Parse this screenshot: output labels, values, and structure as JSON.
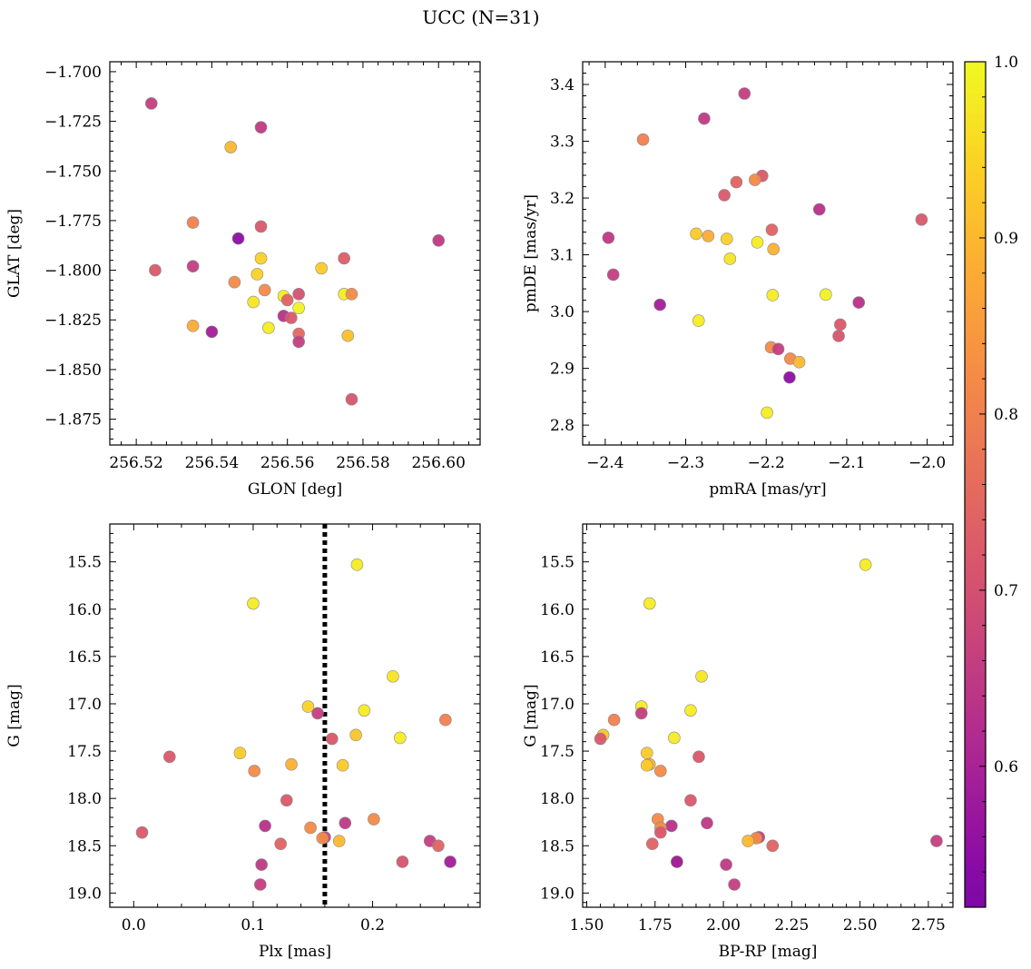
{
  "suptitle": "UCC (N=31)",
  "colormap": "plasma",
  "colorbar": {
    "range": [
      0.52,
      1.0
    ],
    "ticks": [
      0.6,
      0.7,
      0.8,
      0.9,
      1.0
    ],
    "tick_labels": [
      "0.6",
      "0.7",
      "0.8",
      "0.9",
      "1.0"
    ]
  },
  "chart_data": [
    {
      "type": "scatter",
      "xlabel": "GLON [deg]",
      "ylabel": "GLAT [deg]",
      "xlim": [
        256.513,
        256.611
      ],
      "ylim": [
        -1.888,
        -1.695
      ],
      "xticks": [
        256.52,
        256.54,
        256.56,
        256.58,
        256.6
      ],
      "xtick_labels": [
        "256.52",
        "256.54",
        "256.56",
        "256.58",
        "256.60"
      ],
      "yticks": [
        -1.7,
        -1.725,
        -1.75,
        -1.775,
        -1.8,
        -1.825,
        -1.85,
        -1.875
      ],
      "ytick_labels": [
        "−1.700",
        "−1.725",
        "−1.750",
        "−1.775",
        "−1.800",
        "−1.825",
        "−1.850",
        "−1.875"
      ],
      "points": [
        {
          "x": 256.524,
          "y": -1.716,
          "c": 0.66
        },
        {
          "x": 256.553,
          "y": -1.728,
          "c": 0.65
        },
        {
          "x": 256.545,
          "y": -1.738,
          "c": 0.9
        },
        {
          "x": 256.535,
          "y": -1.776,
          "c": 0.8
        },
        {
          "x": 256.553,
          "y": -1.778,
          "c": 0.72
        },
        {
          "x": 256.547,
          "y": -1.784,
          "c": 0.55
        },
        {
          "x": 256.6,
          "y": -1.785,
          "c": 0.65
        },
        {
          "x": 256.553,
          "y": -1.794,
          "c": 0.94
        },
        {
          "x": 256.575,
          "y": -1.794,
          "c": 0.73
        },
        {
          "x": 256.535,
          "y": -1.798,
          "c": 0.66
        },
        {
          "x": 256.525,
          "y": -1.8,
          "c": 0.72
        },
        {
          "x": 256.569,
          "y": -1.799,
          "c": 0.93
        },
        {
          "x": 256.552,
          "y": -1.802,
          "c": 0.94
        },
        {
          "x": 256.546,
          "y": -1.806,
          "c": 0.82
        },
        {
          "x": 256.554,
          "y": -1.81,
          "c": 0.82
        },
        {
          "x": 256.563,
          "y": -1.812,
          "c": 0.7
        },
        {
          "x": 256.575,
          "y": -1.812,
          "c": 0.98
        },
        {
          "x": 256.577,
          "y": -1.812,
          "c": 0.82
        },
        {
          "x": 256.559,
          "y": -1.813,
          "c": 0.98
        },
        {
          "x": 256.56,
          "y": -1.815,
          "c": 0.74
        },
        {
          "x": 256.551,
          "y": -1.816,
          "c": 0.97
        },
        {
          "x": 256.563,
          "y": -1.819,
          "c": 0.99
        },
        {
          "x": 256.559,
          "y": -1.823,
          "c": 0.63
        },
        {
          "x": 256.561,
          "y": -1.824,
          "c": 0.72
        },
        {
          "x": 256.535,
          "y": -1.828,
          "c": 0.88
        },
        {
          "x": 256.555,
          "y": -1.829,
          "c": 0.98
        },
        {
          "x": 256.54,
          "y": -1.831,
          "c": 0.59
        },
        {
          "x": 256.563,
          "y": -1.832,
          "c": 0.75
        },
        {
          "x": 256.576,
          "y": -1.833,
          "c": 0.91
        },
        {
          "x": 256.563,
          "y": -1.836,
          "c": 0.66
        },
        {
          "x": 256.577,
          "y": -1.865,
          "c": 0.71
        }
      ]
    },
    {
      "type": "scatter",
      "xlabel": "pmRA [mas/yr]",
      "ylabel": "pmDE [mas/yr]",
      "xlim": [
        -2.428,
        -1.968
      ],
      "ylim": [
        2.765,
        3.44
      ],
      "xticks": [
        -2.4,
        -2.3,
        -2.2,
        -2.1,
        -2.0
      ],
      "xtick_labels": [
        "−2.4",
        "−2.3",
        "−2.2",
        "−2.1",
        "−2.0"
      ],
      "yticks": [
        2.8,
        2.9,
        3.0,
        3.1,
        3.2,
        3.3,
        3.4
      ],
      "ytick_labels": [
        "2.8",
        "2.9",
        "3.0",
        "3.1",
        "3.2",
        "3.3",
        "3.4"
      ],
      "points": [
        {
          "x": -2.227,
          "y": 3.384,
          "c": 0.66
        },
        {
          "x": -2.277,
          "y": 3.34,
          "c": 0.65
        },
        {
          "x": -2.353,
          "y": 3.303,
          "c": 0.8
        },
        {
          "x": -2.205,
          "y": 3.239,
          "c": 0.72
        },
        {
          "x": -2.214,
          "y": 3.232,
          "c": 0.82
        },
        {
          "x": -2.237,
          "y": 3.228,
          "c": 0.74
        },
        {
          "x": -2.252,
          "y": 3.205,
          "c": 0.72
        },
        {
          "x": -2.134,
          "y": 3.18,
          "c": 0.63
        },
        {
          "x": -2.007,
          "y": 3.162,
          "c": 0.72
        },
        {
          "x": -2.193,
          "y": 3.144,
          "c": 0.74
        },
        {
          "x": -2.287,
          "y": 3.137,
          "c": 0.93
        },
        {
          "x": -2.272,
          "y": 3.133,
          "c": 0.88
        },
        {
          "x": -2.396,
          "y": 3.13,
          "c": 0.65
        },
        {
          "x": -2.249,
          "y": 3.128,
          "c": 0.94
        },
        {
          "x": -2.211,
          "y": 3.122,
          "c": 0.98
        },
        {
          "x": -2.191,
          "y": 3.11,
          "c": 0.89
        },
        {
          "x": -2.245,
          "y": 3.093,
          "c": 0.97
        },
        {
          "x": -2.39,
          "y": 3.065,
          "c": 0.66
        },
        {
          "x": -2.126,
          "y": 3.03,
          "c": 0.99
        },
        {
          "x": -2.192,
          "y": 3.029,
          "c": 0.98
        },
        {
          "x": -2.085,
          "y": 3.016,
          "c": 0.63
        },
        {
          "x": -2.332,
          "y": 3.012,
          "c": 0.59
        },
        {
          "x": -2.284,
          "y": 2.984,
          "c": 0.98
        },
        {
          "x": -2.108,
          "y": 2.977,
          "c": 0.72
        },
        {
          "x": -2.11,
          "y": 2.957,
          "c": 0.71
        },
        {
          "x": -2.194,
          "y": 2.937,
          "c": 0.82
        },
        {
          "x": -2.185,
          "y": 2.934,
          "c": 0.66
        },
        {
          "x": -2.17,
          "y": 2.917,
          "c": 0.82
        },
        {
          "x": -2.159,
          "y": 2.911,
          "c": 0.9
        },
        {
          "x": -2.171,
          "y": 2.884,
          "c": 0.55
        },
        {
          "x": -2.199,
          "y": 2.822,
          "c": 0.98
        }
      ]
    },
    {
      "type": "scatter",
      "xlabel": "Plx [mas]",
      "ylabel": "G [mag]",
      "xlim": [
        -0.02,
        0.29
      ],
      "ylim": [
        19.15,
        15.1
      ],
      "y_inverted": true,
      "vline": {
        "x": 0.16,
        "style": "dotted"
      },
      "xticks": [
        0.0,
        0.1,
        0.2
      ],
      "xtick_labels": [
        "0.0",
        "0.1",
        "0.2"
      ],
      "yticks": [
        15.5,
        16.0,
        16.5,
        17.0,
        17.5,
        18.0,
        18.5,
        19.0
      ],
      "ytick_labels": [
        "15.5",
        "16.0",
        "16.5",
        "17.0",
        "17.5",
        "18.0",
        "18.5",
        "19.0"
      ],
      "points": [
        {
          "x": 0.187,
          "y": 15.53,
          "c": 0.98
        },
        {
          "x": 0.1,
          "y": 15.94,
          "c": 0.98
        },
        {
          "x": 0.217,
          "y": 16.71,
          "c": 0.97
        },
        {
          "x": 0.146,
          "y": 17.03,
          "c": 0.94
        },
        {
          "x": 0.193,
          "y": 17.07,
          "c": 0.98
        },
        {
          "x": 0.154,
          "y": 17.1,
          "c": 0.66
        },
        {
          "x": 0.261,
          "y": 17.17,
          "c": 0.8
        },
        {
          "x": 0.186,
          "y": 17.33,
          "c": 0.92
        },
        {
          "x": 0.166,
          "y": 17.37,
          "c": 0.72
        },
        {
          "x": 0.223,
          "y": 17.36,
          "c": 0.98
        },
        {
          "x": 0.089,
          "y": 17.52,
          "c": 0.93
        },
        {
          "x": 0.03,
          "y": 17.56,
          "c": 0.72
        },
        {
          "x": 0.132,
          "y": 17.64,
          "c": 0.89
        },
        {
          "x": 0.175,
          "y": 17.65,
          "c": 0.93
        },
        {
          "x": 0.101,
          "y": 17.71,
          "c": 0.82
        },
        {
          "x": 0.128,
          "y": 18.02,
          "c": 0.72
        },
        {
          "x": 0.201,
          "y": 18.22,
          "c": 0.82
        },
        {
          "x": 0.177,
          "y": 18.26,
          "c": 0.65
        },
        {
          "x": 0.11,
          "y": 18.29,
          "c": 0.63
        },
        {
          "x": 0.148,
          "y": 18.31,
          "c": 0.82
        },
        {
          "x": 0.007,
          "y": 18.36,
          "c": 0.72
        },
        {
          "x": 0.16,
          "y": 18.41,
          "c": 0.66
        },
        {
          "x": 0.158,
          "y": 18.42,
          "c": 0.82
        },
        {
          "x": 0.172,
          "y": 18.45,
          "c": 0.9
        },
        {
          "x": 0.248,
          "y": 18.45,
          "c": 0.66
        },
        {
          "x": 0.123,
          "y": 18.48,
          "c": 0.74
        },
        {
          "x": 0.255,
          "y": 18.5,
          "c": 0.74
        },
        {
          "x": 0.225,
          "y": 18.67,
          "c": 0.71
        },
        {
          "x": 0.265,
          "y": 18.67,
          "c": 0.59
        },
        {
          "x": 0.107,
          "y": 18.7,
          "c": 0.65
        },
        {
          "x": 0.106,
          "y": 18.91,
          "c": 0.66
        }
      ]
    },
    {
      "type": "scatter",
      "xlabel": "BP-RP [mag]",
      "ylabel": "G [mag]",
      "xlim": [
        1.485,
        2.84
      ],
      "ylim": [
        19.15,
        15.1
      ],
      "y_inverted": true,
      "xticks": [
        1.5,
        1.75,
        2.0,
        2.25,
        2.5,
        2.75
      ],
      "xtick_labels": [
        "1.50",
        "1.75",
        "2.00",
        "2.25",
        "2.50",
        "2.75"
      ],
      "yticks": [
        15.5,
        16.0,
        16.5,
        17.0,
        17.5,
        18.0,
        18.5,
        19.0
      ],
      "ytick_labels": [
        "15.5",
        "16.0",
        "16.5",
        "17.0",
        "17.5",
        "18.0",
        "18.5",
        "19.0"
      ],
      "points": [
        {
          "x": 2.52,
          "y": 15.53,
          "c": 0.98
        },
        {
          "x": 1.73,
          "y": 15.94,
          "c": 0.98
        },
        {
          "x": 1.92,
          "y": 16.71,
          "c": 0.97
        },
        {
          "x": 1.7,
          "y": 17.03,
          "c": 0.98
        },
        {
          "x": 1.88,
          "y": 17.07,
          "c": 0.98
        },
        {
          "x": 1.7,
          "y": 17.1,
          "c": 0.66
        },
        {
          "x": 1.6,
          "y": 17.17,
          "c": 0.8
        },
        {
          "x": 1.56,
          "y": 17.33,
          "c": 0.92
        },
        {
          "x": 1.55,
          "y": 17.37,
          "c": 0.72
        },
        {
          "x": 1.82,
          "y": 17.36,
          "c": 0.98
        },
        {
          "x": 1.72,
          "y": 17.52,
          "c": 0.93
        },
        {
          "x": 1.91,
          "y": 17.56,
          "c": 0.72
        },
        {
          "x": 1.73,
          "y": 17.64,
          "c": 0.89
        },
        {
          "x": 1.72,
          "y": 17.65,
          "c": 0.93
        },
        {
          "x": 1.77,
          "y": 17.71,
          "c": 0.82
        },
        {
          "x": 1.88,
          "y": 18.02,
          "c": 0.72
        },
        {
          "x": 1.76,
          "y": 18.22,
          "c": 0.82
        },
        {
          "x": 1.94,
          "y": 18.26,
          "c": 0.65
        },
        {
          "x": 1.81,
          "y": 18.29,
          "c": 0.63
        },
        {
          "x": 1.77,
          "y": 18.31,
          "c": 0.82
        },
        {
          "x": 1.77,
          "y": 18.36,
          "c": 0.72
        },
        {
          "x": 2.13,
          "y": 18.41,
          "c": 0.66
        },
        {
          "x": 2.12,
          "y": 18.42,
          "c": 0.82
        },
        {
          "x": 2.09,
          "y": 18.45,
          "c": 0.9
        },
        {
          "x": 2.78,
          "y": 18.45,
          "c": 0.66
        },
        {
          "x": 1.74,
          "y": 18.48,
          "c": 0.74
        },
        {
          "x": 2.18,
          "y": 18.5,
          "c": 0.74
        },
        {
          "x": 1.83,
          "y": 18.67,
          "c": 0.71
        },
        {
          "x": 1.83,
          "y": 18.67,
          "c": 0.59
        },
        {
          "x": 2.01,
          "y": 18.7,
          "c": 0.65
        },
        {
          "x": 2.04,
          "y": 18.91,
          "c": 0.66
        }
      ]
    }
  ]
}
